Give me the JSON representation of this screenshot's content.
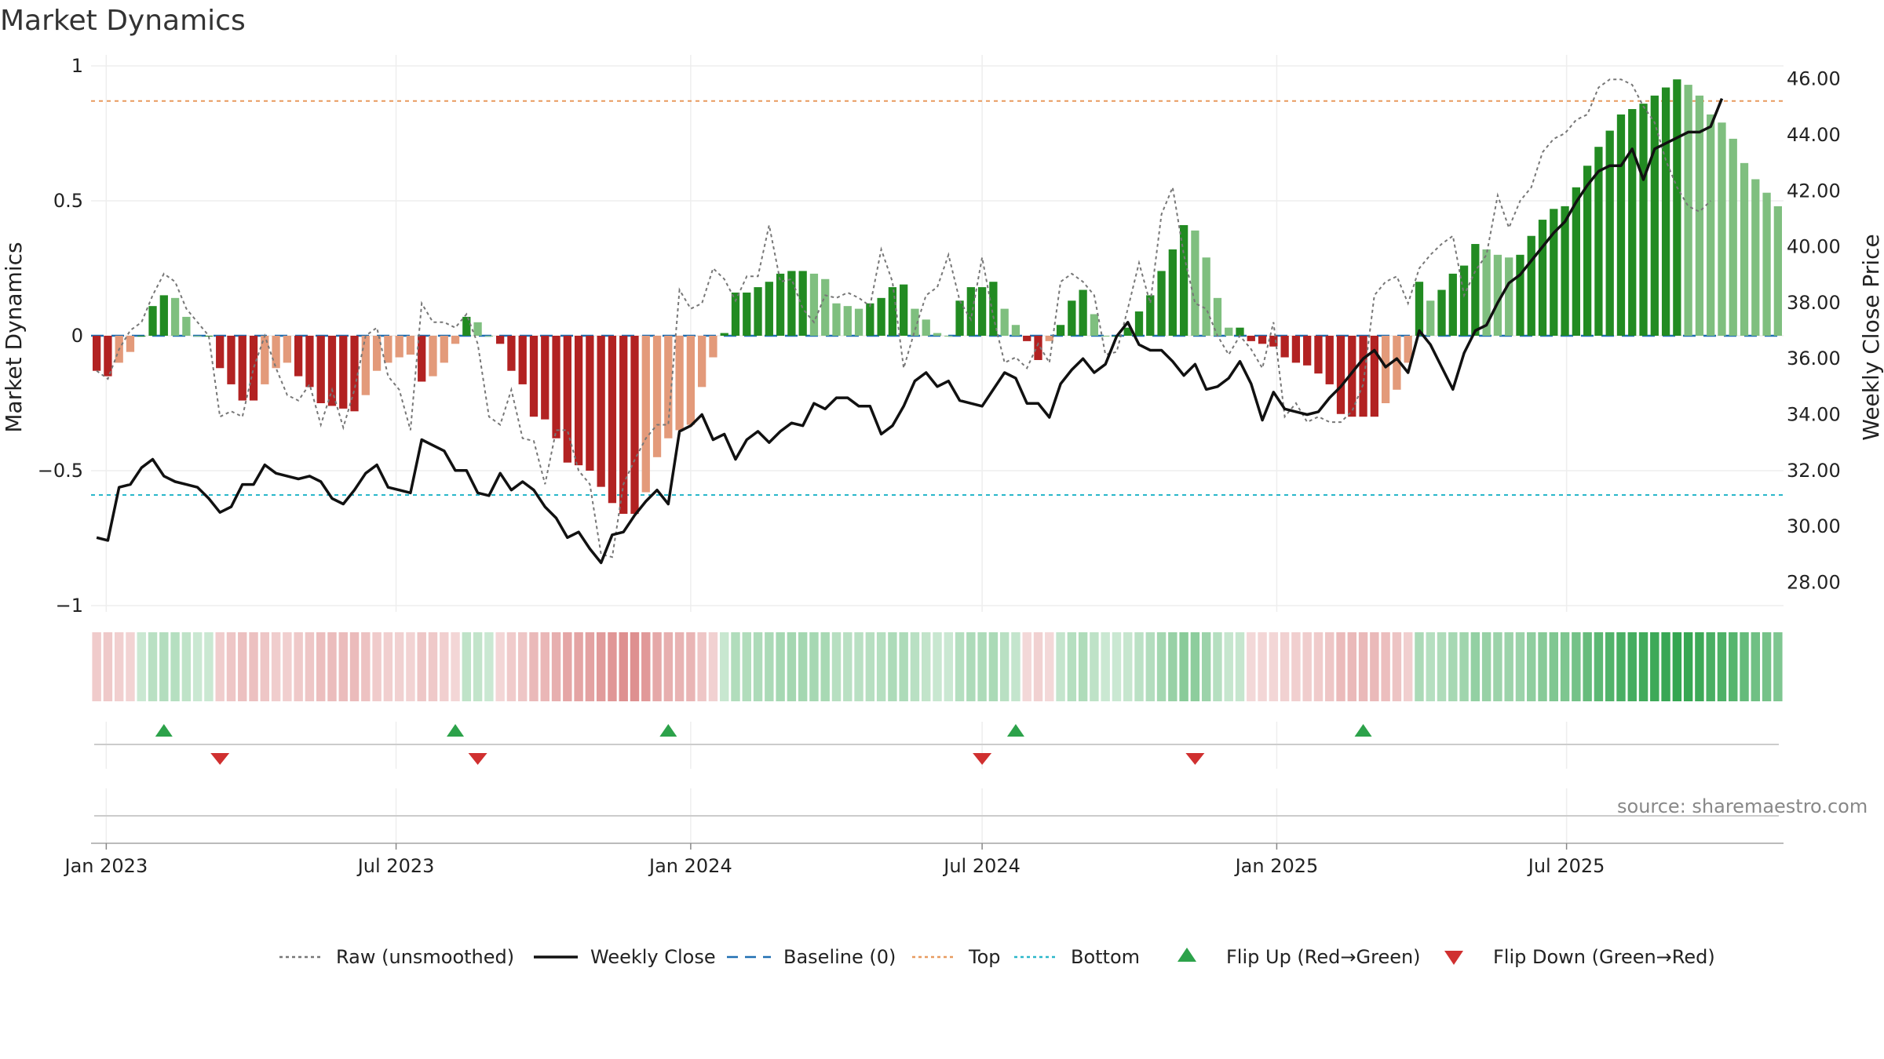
{
  "title": "Market Dynamics",
  "source": "source: sharemaestro.com",
  "chart_data": {
    "type": "bar",
    "title": "Market Dynamics",
    "ylabel_left": "Market Dynamics",
    "ylabel_right": "Weekly Close Price",
    "ylim_left": [
      -1,
      1
    ],
    "ylim_right": [
      27,
      46.3
    ],
    "yticks_left": [
      "1",
      "0.5",
      "0",
      "−0.5",
      "−1"
    ],
    "yticks_right": [
      "46.00",
      "44.00",
      "42.00",
      "40.00",
      "38.00",
      "36.00",
      "34.00",
      "32.00",
      "30.00",
      "28.00"
    ],
    "xticks": [
      "Jan 2023",
      "Jul 2023",
      "Jan 2024",
      "Jul 2024",
      "Jan 2025",
      "Jul 2025"
    ],
    "x_start": "2022-12-26",
    "week_step_days": 7,
    "top_line": 0.87,
    "bottom_line": -0.59,
    "series": [
      {
        "name": "Market Dynamics (smoothed)",
        "values": [
          -0.13,
          -0.15,
          -0.1,
          -0.06,
          0.0,
          0.11,
          0.15,
          0.14,
          0.07,
          0.0,
          0.0,
          -0.12,
          -0.18,
          -0.24,
          -0.24,
          -0.18,
          -0.12,
          -0.1,
          -0.15,
          -0.19,
          -0.25,
          -0.26,
          -0.27,
          -0.28,
          -0.22,
          -0.13,
          -0.1,
          -0.08,
          -0.07,
          -0.17,
          -0.15,
          -0.1,
          -0.03,
          0.07,
          0.05,
          0.0,
          -0.03,
          -0.13,
          -0.18,
          -0.3,
          -0.31,
          -0.38,
          -0.47,
          -0.48,
          -0.5,
          -0.56,
          -0.62,
          -0.66,
          -0.66,
          -0.58,
          -0.45,
          -0.38,
          -0.35,
          -0.33,
          -0.19,
          -0.08,
          0.01,
          0.16,
          0.16,
          0.18,
          0.2,
          0.23,
          0.24,
          0.24,
          0.23,
          0.21,
          0.12,
          0.11,
          0.1,
          0.12,
          0.14,
          0.18,
          0.19,
          0.1,
          0.06,
          0.01,
          0.0,
          0.13,
          0.18,
          0.18,
          0.2,
          0.1,
          0.04,
          -0.02,
          -0.09,
          -0.02,
          0.04,
          0.13,
          0.17,
          0.08,
          0.0,
          0.0,
          0.03,
          0.09,
          0.15,
          0.24,
          0.32,
          0.41,
          0.39,
          0.29,
          0.14,
          0.03,
          0.03,
          -0.02,
          -0.03,
          -0.04,
          -0.08,
          -0.1,
          -0.11,
          -0.14,
          -0.18,
          -0.29,
          -0.3,
          -0.3,
          -0.3,
          -0.25,
          -0.2,
          -0.1,
          0.2,
          0.13,
          0.17,
          0.23,
          0.26,
          0.34,
          0.32,
          0.3,
          0.29,
          0.3,
          0.37,
          0.43,
          0.47,
          0.48,
          0.55,
          0.63,
          0.7,
          0.76,
          0.82,
          0.84,
          0.86,
          0.89,
          0.92,
          0.95,
          0.93,
          0.89,
          0.82,
          0.79,
          0.73,
          0.64,
          0.58,
          0.53,
          0.48
        ]
      },
      {
        "name": "Raw (unsmoothed)",
        "values": [
          -0.13,
          -0.16,
          -0.05,
          0.02,
          0.05,
          0.15,
          0.23,
          0.2,
          0.1,
          0.05,
          0.0,
          -0.3,
          -0.28,
          -0.3,
          -0.12,
          0.0,
          -0.12,
          -0.22,
          -0.24,
          -0.18,
          -0.33,
          -0.2,
          -0.34,
          -0.2,
          0.0,
          0.03,
          -0.15,
          -0.2,
          -0.35,
          0.12,
          0.05,
          0.05,
          0.03,
          0.08,
          -0.03,
          -0.3,
          -0.33,
          -0.2,
          -0.38,
          -0.39,
          -0.55,
          -0.35,
          -0.35,
          -0.5,
          -0.55,
          -0.81,
          -0.82,
          -0.55,
          -0.46,
          -0.38,
          -0.33,
          -0.33,
          0.17,
          0.1,
          0.12,
          0.25,
          0.21,
          0.13,
          0.22,
          0.22,
          0.41,
          0.2,
          0.21,
          0.1,
          0.05,
          0.15,
          0.14,
          0.16,
          0.14,
          0.11,
          0.32,
          0.2,
          -0.12,
          0.02,
          0.15,
          0.18,
          0.3,
          0.13,
          0.06,
          0.29,
          0.07,
          -0.1,
          -0.08,
          -0.12,
          -0.03,
          -0.1,
          0.2,
          0.23,
          0.2,
          0.15,
          -0.07,
          -0.06,
          0.1,
          0.27,
          0.12,
          0.45,
          0.55,
          0.3,
          0.12,
          0.1,
          0.0,
          -0.07,
          0.0,
          -0.05,
          -0.12,
          0.05,
          -0.3,
          -0.25,
          -0.32,
          -0.3,
          -0.32,
          -0.32,
          -0.28,
          -0.18,
          0.15,
          0.2,
          0.22,
          0.12,
          0.25,
          0.3,
          0.34,
          0.37,
          0.15,
          0.24,
          0.3,
          0.52,
          0.4,
          0.5,
          0.55,
          0.68,
          0.73,
          0.75,
          0.8,
          0.82,
          0.92,
          0.95,
          0.95,
          0.93,
          0.85,
          0.79,
          0.65,
          0.55,
          0.48,
          0.46,
          0.5
        ]
      },
      {
        "name": "Weekly Close",
        "values": [
          29.6,
          29.5,
          31.4,
          31.5,
          32.1,
          32.4,
          31.8,
          31.6,
          31.5,
          31.4,
          31.0,
          30.5,
          30.7,
          31.5,
          31.5,
          32.2,
          31.9,
          31.8,
          31.7,
          31.8,
          31.6,
          31.0,
          30.8,
          31.3,
          31.9,
          32.2,
          31.4,
          31.3,
          31.2,
          33.1,
          32.9,
          32.7,
          32.0,
          32.0,
          31.2,
          31.1,
          31.9,
          31.3,
          31.6,
          31.3,
          30.7,
          30.3,
          29.6,
          29.8,
          29.2,
          28.7,
          29.7,
          29.8,
          30.4,
          30.9,
          31.3,
          30.8,
          33.4,
          33.6,
          34.0,
          33.1,
          33.3,
          32.4,
          33.1,
          33.4,
          33.0,
          33.4,
          33.7,
          33.6,
          34.4,
          34.2,
          34.6,
          34.6,
          34.3,
          34.3,
          33.3,
          33.6,
          34.3,
          35.2,
          35.5,
          35.0,
          35.2,
          34.5,
          34.4,
          34.3,
          34.9,
          35.5,
          35.3,
          34.4,
          34.4,
          33.9,
          35.1,
          35.6,
          36.0,
          35.5,
          35.8,
          36.8,
          37.3,
          36.5,
          36.3,
          36.3,
          35.9,
          35.4,
          35.8,
          34.9,
          35.0,
          35.3,
          35.9,
          35.1,
          33.8,
          34.8,
          34.2,
          34.1,
          34.0,
          34.1,
          34.6,
          35.0,
          35.5,
          36.0,
          36.3,
          35.7,
          36.0,
          35.5,
          37.0,
          36.5,
          35.7,
          34.9,
          36.2,
          37.0,
          37.2,
          38.0,
          38.7,
          39.0,
          39.5,
          40.0,
          40.5,
          40.9,
          41.6,
          42.2,
          42.7,
          42.9,
          42.9,
          43.5,
          42.4,
          43.5,
          43.7,
          43.9,
          44.1,
          44.1,
          44.3,
          45.3
        ]
      }
    ],
    "flips_up": [
      "2023-02-06",
      "2023-08-07",
      "2023-12-18",
      "2024-07-22",
      "2025-02-24"
    ],
    "flips_down": [
      "2023-03-13",
      "2023-08-21",
      "2024-07-01",
      "2024-11-11"
    ],
    "legend": [
      {
        "label": "Raw (unsmoothed)",
        "style": "dotted",
        "color": "#777777"
      },
      {
        "label": "Weekly Close",
        "style": "solid",
        "color": "#111111"
      },
      {
        "label": "Baseline (0)",
        "style": "dashed",
        "color": "#1f6fb2"
      },
      {
        "label": "Top",
        "style": "dotted",
        "color": "#e89a5f"
      },
      {
        "label": "Bottom",
        "style": "dotted",
        "color": "#2ab7ca"
      },
      {
        "label": "Flip Up (Red→Green)",
        "style": "triangle-up",
        "color": "#2ca24a"
      },
      {
        "label": "Flip Down (Green→Red)",
        "style": "triangle-down",
        "color": "#d03030"
      }
    ],
    "legend_position": "bottom-center",
    "grid": true
  },
  "colors": {
    "green_strong": "#228b22",
    "green_light": "#7fbf7f",
    "red_strong": "#b22222",
    "red_light": "#e39a7a",
    "flip_up": "#2ca24a",
    "flip_down": "#d03030",
    "top_line": "#e89a5f",
    "bottom_line": "#2ab7ca",
    "baseline": "#1f6fb2"
  }
}
